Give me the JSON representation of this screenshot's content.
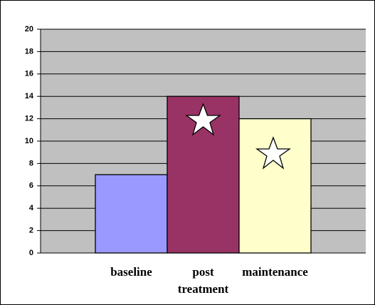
{
  "chart_data": {
    "type": "bar",
    "categories": [
      "baseline",
      "post treatment",
      "maintenance"
    ],
    "values": [
      7,
      14,
      12
    ],
    "colors": [
      "#9999ff",
      "#993366",
      "#ffffcc"
    ],
    "ylim": [
      0,
      20
    ],
    "yticks": [
      0,
      2,
      4,
      6,
      8,
      10,
      12,
      14,
      16,
      18,
      20
    ],
    "grid": true
  }
}
